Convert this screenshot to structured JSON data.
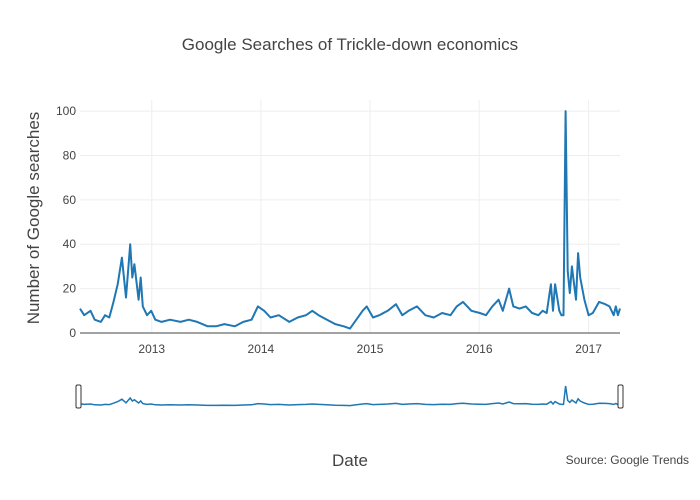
{
  "chart_data": {
    "type": "line",
    "title": "Google Searches of Trickle-down economics",
    "xlabel": "Date",
    "ylabel": "Number of Google searches",
    "annotation": "Source: Google Trends",
    "x_range": [
      "2012-05-06",
      "2017-04-16"
    ],
    "ylim": [
      0,
      105
    ],
    "y_ticks": [
      0,
      20,
      40,
      60,
      80,
      100
    ],
    "x_ticks": [
      {
        "date": "2013-01-01",
        "label": "2013"
      },
      {
        "date": "2014-01-01",
        "label": "2014"
      },
      {
        "date": "2015-01-01",
        "label": "2015"
      },
      {
        "date": "2016-01-01",
        "label": "2016"
      },
      {
        "date": "2017-01-01",
        "label": "2017"
      }
    ],
    "grid": true,
    "range_slider": true,
    "line_color": "#1f77b4",
    "series": [
      {
        "points": [
          [
            "2012-05-06",
            11
          ],
          [
            "2012-05-20",
            8
          ],
          [
            "2012-06-10",
            10
          ],
          [
            "2012-06-24",
            6
          ],
          [
            "2012-07-15",
            5
          ],
          [
            "2012-07-29",
            8
          ],
          [
            "2012-08-12",
            7
          ],
          [
            "2012-08-26",
            14
          ],
          [
            "2012-09-09",
            22
          ],
          [
            "2012-09-23",
            34
          ],
          [
            "2012-10-07",
            16
          ],
          [
            "2012-10-21",
            40
          ],
          [
            "2012-10-28",
            25
          ],
          [
            "2012-11-04",
            31
          ],
          [
            "2012-11-18",
            15
          ],
          [
            "2012-11-25",
            25
          ],
          [
            "2012-12-02",
            12
          ],
          [
            "2012-12-16",
            8
          ],
          [
            "2012-12-30",
            10
          ],
          [
            "2013-01-13",
            6
          ],
          [
            "2013-02-03",
            5
          ],
          [
            "2013-03-03",
            6
          ],
          [
            "2013-04-07",
            5
          ],
          [
            "2013-05-05",
            6
          ],
          [
            "2013-06-02",
            5
          ],
          [
            "2013-07-07",
            3
          ],
          [
            "2013-08-04",
            3
          ],
          [
            "2013-09-01",
            4
          ],
          [
            "2013-10-06",
            3
          ],
          [
            "2013-11-03",
            5
          ],
          [
            "2013-12-01",
            6
          ],
          [
            "2013-12-22",
            12
          ],
          [
            "2014-01-12",
            10
          ],
          [
            "2014-02-02",
            7
          ],
          [
            "2014-03-02",
            8
          ],
          [
            "2014-04-06",
            5
          ],
          [
            "2014-05-04",
            7
          ],
          [
            "2014-06-01",
            8
          ],
          [
            "2014-06-22",
            10
          ],
          [
            "2014-07-13",
            8
          ],
          [
            "2014-08-10",
            6
          ],
          [
            "2014-09-07",
            4
          ],
          [
            "2014-10-05",
            3
          ],
          [
            "2014-10-26",
            2
          ],
          [
            "2014-11-16",
            6
          ],
          [
            "2014-12-07",
            10
          ],
          [
            "2014-12-21",
            12
          ],
          [
            "2015-01-11",
            7
          ],
          [
            "2015-02-01",
            8
          ],
          [
            "2015-03-01",
            10
          ],
          [
            "2015-03-29",
            13
          ],
          [
            "2015-04-19",
            8
          ],
          [
            "2015-05-10",
            10
          ],
          [
            "2015-06-07",
            12
          ],
          [
            "2015-07-05",
            8
          ],
          [
            "2015-08-02",
            7
          ],
          [
            "2015-08-30",
            9
          ],
          [
            "2015-09-27",
            8
          ],
          [
            "2015-10-18",
            12
          ],
          [
            "2015-11-08",
            14
          ],
          [
            "2015-12-06",
            10
          ],
          [
            "2016-01-03",
            9
          ],
          [
            "2016-01-24",
            8
          ],
          [
            "2016-02-14",
            12
          ],
          [
            "2016-03-06",
            15
          ],
          [
            "2016-03-20",
            10
          ],
          [
            "2016-04-10",
            20
          ],
          [
            "2016-04-24",
            12
          ],
          [
            "2016-05-15",
            11
          ],
          [
            "2016-06-05",
            12
          ],
          [
            "2016-06-26",
            9
          ],
          [
            "2016-07-17",
            8
          ],
          [
            "2016-07-31",
            10
          ],
          [
            "2016-08-14",
            9
          ],
          [
            "2016-08-28",
            22
          ],
          [
            "2016-09-04",
            10
          ],
          [
            "2016-09-11",
            22
          ],
          [
            "2016-09-25",
            10
          ],
          [
            "2016-10-02",
            8
          ],
          [
            "2016-10-09",
            8
          ],
          [
            "2016-10-16",
            100
          ],
          [
            "2016-10-23",
            28
          ],
          [
            "2016-10-30",
            18
          ],
          [
            "2016-11-06",
            30
          ],
          [
            "2016-11-20",
            15
          ],
          [
            "2016-11-27",
            36
          ],
          [
            "2016-12-04",
            25
          ],
          [
            "2016-12-18",
            15
          ],
          [
            "2017-01-01",
            8
          ],
          [
            "2017-01-15",
            9
          ],
          [
            "2017-02-05",
            14
          ],
          [
            "2017-02-26",
            13
          ],
          [
            "2017-03-12",
            12
          ],
          [
            "2017-03-26",
            8
          ],
          [
            "2017-04-02",
            12
          ],
          [
            "2017-04-09",
            8
          ],
          [
            "2017-04-16",
            11
          ]
        ]
      }
    ]
  }
}
